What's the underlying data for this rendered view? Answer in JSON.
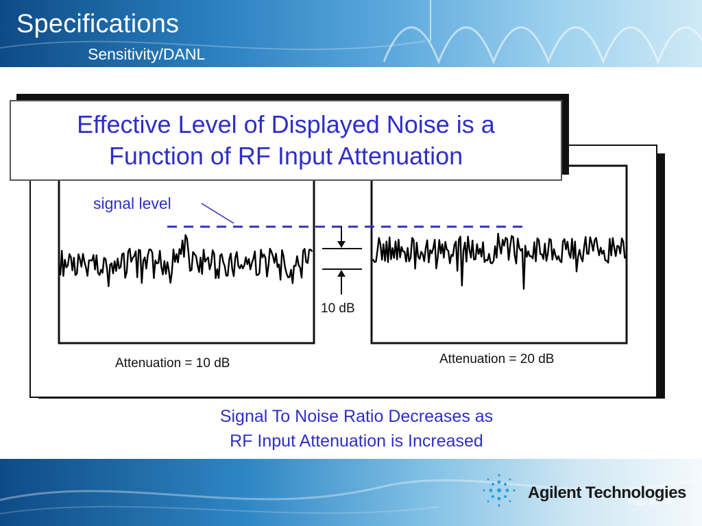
{
  "slide": {
    "title": "Specifications",
    "subtitle": "Sensitivity/DANL"
  },
  "heading": {
    "line1": "Effective Level of Displayed Noise is a",
    "line2": "Function of RF Input Attenuation"
  },
  "diagram": {
    "signal_label": "signal level",
    "delta_label": "10 dB",
    "left_label": "Attenuation = 10 dB",
    "right_label": "Attenuation = 20 dB"
  },
  "caption": {
    "line1": "Signal To Noise Ratio Decreases as",
    "line2": "RF Input Attenuation is Increased"
  },
  "footer": {
    "brand": "Agilent Technologies",
    "page": "Page M6  46"
  },
  "colors": {
    "accent_text": "#2e2ec8",
    "banner": "#2a7fbf"
  }
}
